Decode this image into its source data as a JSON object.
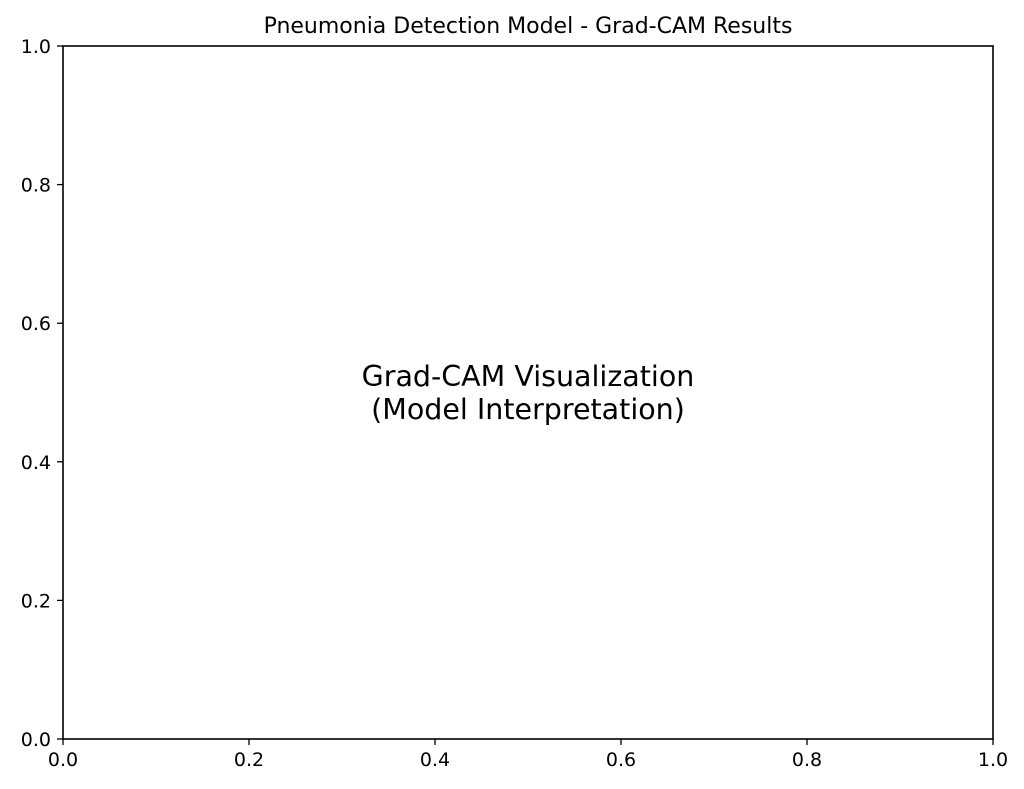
{
  "chart_data": {
    "type": "scatter",
    "title": "Pneumonia Detection Model - Grad-CAM Results",
    "xlabel": "",
    "ylabel": "",
    "xlim": [
      0.0,
      1.0
    ],
    "ylim": [
      0.0,
      1.0
    ],
    "x_ticks": [
      {
        "value": 0.0,
        "label": "0.0"
      },
      {
        "value": 0.2,
        "label": "0.2"
      },
      {
        "value": 0.4,
        "label": "0.4"
      },
      {
        "value": 0.6,
        "label": "0.6"
      },
      {
        "value": 0.8,
        "label": "0.8"
      },
      {
        "value": 1.0,
        "label": "1.0"
      }
    ],
    "y_ticks": [
      {
        "value": 0.0,
        "label": "0.0"
      },
      {
        "value": 0.2,
        "label": "0.2"
      },
      {
        "value": 0.4,
        "label": "0.4"
      },
      {
        "value": 0.6,
        "label": "0.6"
      },
      {
        "value": 0.8,
        "label": "0.8"
      },
      {
        "value": 1.0,
        "label": "1.0"
      }
    ],
    "series": [],
    "grid": false,
    "legend": "none",
    "annotations": [
      {
        "lines": [
          "Grad-CAM Visualization",
          "(Model Interpretation)"
        ],
        "x": 0.5,
        "y": 0.5
      }
    ]
  }
}
